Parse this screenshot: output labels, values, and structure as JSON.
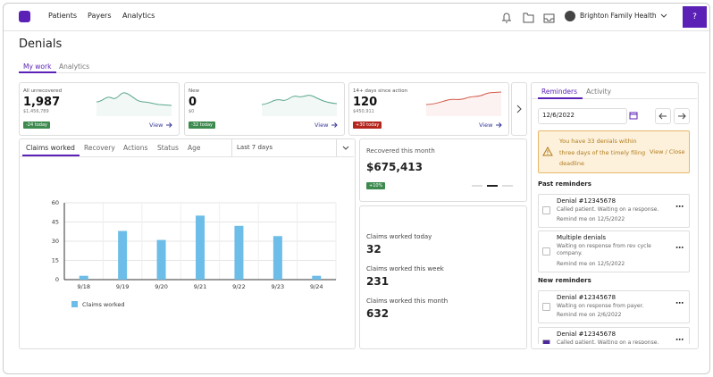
{
  "nav": {
    "items": [
      "Patients",
      "Payers",
      "Analytics"
    ],
    "org": "Brighton Family Health",
    "help": "?"
  },
  "page": {
    "title": "Denials",
    "tabs": [
      "My work",
      "Analytics"
    ]
  },
  "cards": [
    {
      "label": "All unrecovered",
      "value": "1,987",
      "amount": "$1,456,789",
      "badge": "-24 today",
      "link": "View"
    },
    {
      "label": "New",
      "value": "0",
      "amount": "$0",
      "badge": "-32 today",
      "link": "View"
    },
    {
      "label": "14+ days since action",
      "value": "120",
      "amount": "$450,911",
      "badge": "+30 today",
      "link": "View"
    }
  ],
  "chart_tabs": [
    "Claims worked",
    "Recovery",
    "Actions",
    "Status",
    "Age"
  ],
  "range": "Last 7 days",
  "chart_data": {
    "type": "bar",
    "categories": [
      "9/18",
      "9/19",
      "9/20",
      "9/21",
      "9/22",
      "9/23",
      "9/24"
    ],
    "series": [
      {
        "name": "Claims worked",
        "color": "#6cbde8",
        "values": [
          3,
          38,
          31,
          50,
          42,
          34,
          3
        ]
      }
    ],
    "ylim": [
      0,
      60
    ],
    "yticks": [
      0,
      15,
      30,
      45,
      60
    ],
    "grid": true
  },
  "recovered": {
    "label": "Recovered this month",
    "value": "$675,413",
    "badge": "+10%"
  },
  "stats": [
    {
      "label": "Claims worked today",
      "value": "32"
    },
    {
      "label": "Claims worked this week",
      "value": "231"
    },
    {
      "label": "Claims worked this month",
      "value": "632"
    }
  ],
  "reminders": {
    "tabs": [
      "Reminders",
      "Activity"
    ],
    "date": "12/6/2022",
    "alert": "You have 33 denials within three days of the timely filing deadline",
    "alert_action": "View / Close",
    "past_title": "Past reminders",
    "past": [
      {
        "title": "Denial #12345678",
        "note": "Called patient. Waiting on a response.",
        "remind": "Remind me on 12/5/2022"
      },
      {
        "title": "Multiple denials",
        "note": "Waiting on response from rev cycle company.",
        "remind": "Remind me on 12/5/2022"
      }
    ],
    "new_title": "New reminders",
    "new": [
      {
        "title": "Denial #12345678",
        "note": "Waiting on response from payer.",
        "remind": "Remind me on 2/6/2022"
      },
      {
        "title": "Denial #12345678",
        "note": "Called patient. Waiting on a response."
      }
    ]
  }
}
